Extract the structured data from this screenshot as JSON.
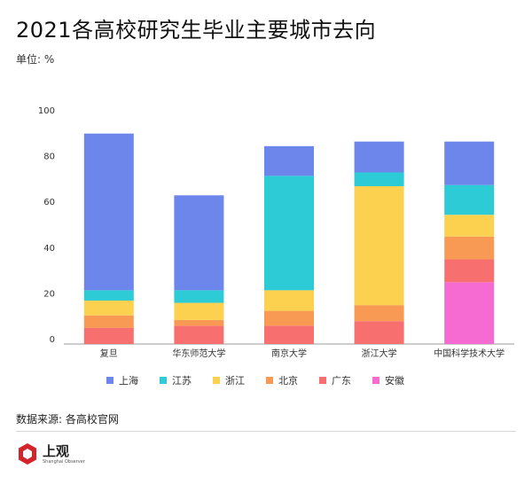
{
  "title": "2021各高校研究生毕业主要城市去向",
  "unit_label": "单位: %",
  "source": "数据来源: 各高校官网",
  "logo": {
    "text": "上观",
    "subtext": "Shanghai Observer"
  },
  "colors": {
    "上海": "#6c86ec",
    "江苏": "#2ccbd6",
    "浙江": "#fdd150",
    "北京": "#f89a53",
    "广东": "#f86f6f",
    "安徽": "#f56bd1"
  },
  "chart_data": {
    "type": "bar",
    "stacked": true,
    "title": "2021各高校研究生毕业主要城市去向",
    "ylabel": "单位: %",
    "xlabel": "",
    "ylim": [
      0,
      100
    ],
    "yticks": [
      0,
      20,
      40,
      60,
      80,
      100
    ],
    "categories": [
      "复旦",
      "华东师范大学",
      "南京大学",
      "浙江大学",
      "中国科学技术大学"
    ],
    "series": [
      {
        "name": "安徽",
        "values": [
          0,
          0,
          0,
          0,
          27
        ]
      },
      {
        "name": "广东",
        "values": [
          7,
          8,
          8,
          10,
          10
        ]
      },
      {
        "name": "北京",
        "values": [
          5.5,
          2.5,
          6.5,
          7,
          10
        ]
      },
      {
        "name": "浙江",
        "values": [
          6.5,
          7.5,
          9,
          52,
          9.5
        ]
      },
      {
        "name": "江苏",
        "values": [
          4.5,
          5.5,
          50,
          6,
          13
        ]
      },
      {
        "name": "上海",
        "values": [
          68.5,
          41.5,
          13,
          13.5,
          19
        ]
      }
    ],
    "legend_order": [
      "上海",
      "江苏",
      "浙江",
      "北京",
      "广东",
      "安徽"
    ],
    "legend_position": "bottom",
    "grid": false
  }
}
